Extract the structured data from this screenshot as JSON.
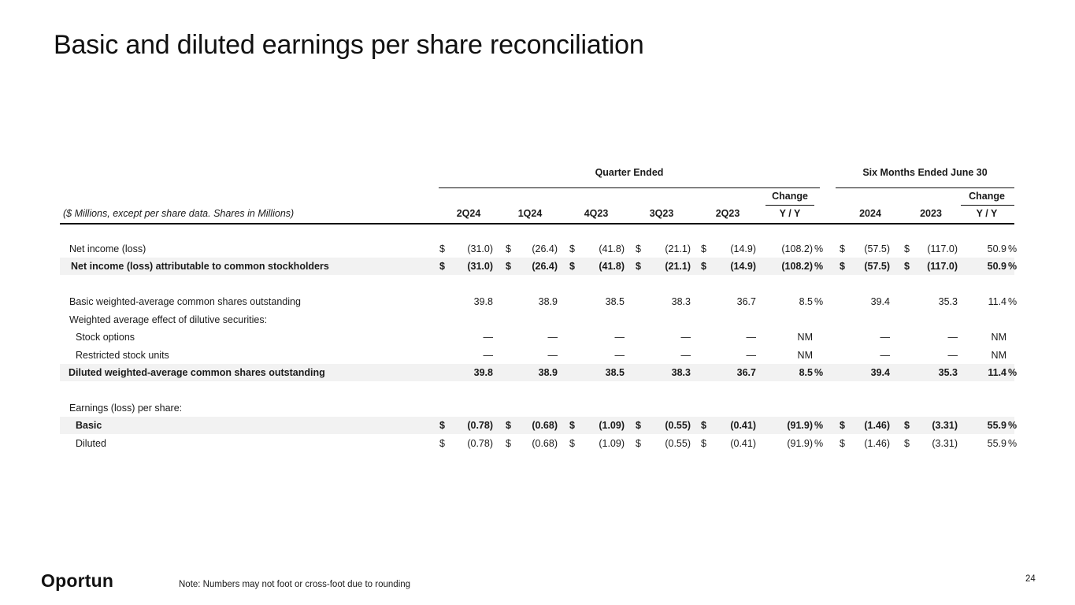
{
  "title": "Basic and diluted earnings per share reconciliation",
  "header": {
    "group_quarter": "Quarter Ended",
    "group_six": "Six Months Ended June 30",
    "change_label": "Change",
    "units": "($ Millions, except per share data. Shares in Millions)",
    "columns": [
      "2Q24",
      "1Q24",
      "4Q23",
      "3Q23",
      "2Q23",
      "Y / Y",
      "2024",
      "2023",
      "Y / Y"
    ]
  },
  "rows": [
    {
      "label": "Net income (loss)",
      "vals": [
        "(31.0)",
        "(26.4)",
        "(41.8)",
        "(21.1)",
        "(14.9)",
        "(108.2)",
        "(57.5)",
        "(117.0)",
        "50.9"
      ],
      "dollar": true,
      "pct1": "%",
      "pct2": "%"
    },
    {
      "label": "Net income (loss)  attributable to common stockholders",
      "vals": [
        "(31.0)",
        "(26.4)",
        "(41.8)",
        "(21.1)",
        "(14.9)",
        "(108.2)",
        "(57.5)",
        "(117.0)",
        "50.9"
      ],
      "dollar": true,
      "pct1": "%",
      "pct2": "%"
    },
    {
      "label": "Basic weighted-average common shares outstanding",
      "vals": [
        "39.8",
        "38.9",
        "38.5",
        "38.3",
        "36.7",
        "8.5",
        "39.4",
        "35.3",
        "11.4"
      ],
      "pct1": "%",
      "pct2": "%"
    },
    {
      "label": "Weighted average effect of dilutive securities:"
    },
    {
      "label": "Stock options",
      "vals": [
        "—",
        "—",
        "—",
        "—",
        "—",
        "NM",
        "—",
        "—",
        "NM"
      ]
    },
    {
      "label": "Restricted stock units",
      "vals": [
        "—",
        "—",
        "—",
        "—",
        "—",
        "NM",
        "—",
        "—",
        "NM"
      ]
    },
    {
      "label": "Diluted weighted-average common shares outstanding",
      "vals": [
        "39.8",
        "38.9",
        "38.5",
        "38.3",
        "36.7",
        "8.5",
        "39.4",
        "35.3",
        "11.4"
      ],
      "pct1": "%",
      "pct2": "%"
    },
    {
      "label": "Earnings (loss) per share:"
    },
    {
      "label": "Basic",
      "vals": [
        "(0.78)",
        "(0.68)",
        "(1.09)",
        "(0.55)",
        "(0.41)",
        "(91.9)",
        "(1.46)",
        "(3.31)",
        "55.9"
      ],
      "dollar": true,
      "pct1": "%",
      "pct2": "%"
    },
    {
      "label": "Diluted",
      "vals": [
        "(0.78)",
        "(0.68)",
        "(1.09)",
        "(0.55)",
        "(0.41)",
        "(91.9)",
        "(1.46)",
        "(3.31)",
        "55.9"
      ],
      "dollar": true,
      "pct1": "%",
      "pct2": "%"
    }
  ],
  "dollar_sign": "$",
  "note": "Note: Numbers may not foot or cross-foot due to rounding",
  "page_number": "24",
  "logo_text": "Oportun",
  "colors": {
    "shade": "#f2f2f2",
    "text": "#1a1a1a"
  }
}
